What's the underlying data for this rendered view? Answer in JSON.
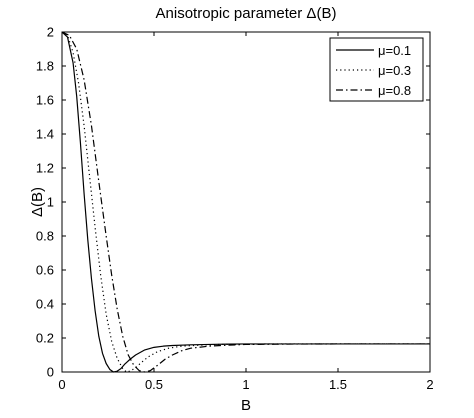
{
  "chart_data": {
    "type": "line",
    "title": "Anisotropic parameter Δ(B)",
    "xlabel": "B",
    "ylabel": "Δ(B)",
    "xlim": [
      0,
      2
    ],
    "ylim": [
      0,
      2
    ],
    "grid": false,
    "legend_position": "top-right",
    "x_ticks": [
      0,
      0.5,
      1,
      1.5,
      2
    ],
    "x_tick_labels": [
      "0",
      "0.5",
      "1",
      "1.5",
      "2"
    ],
    "y_ticks": [
      0,
      0.2,
      0.4,
      0.6,
      0.8,
      1,
      1.2,
      1.4,
      1.6,
      1.8,
      2
    ],
    "y_tick_labels": [
      "0",
      "0.2",
      "0.4",
      "0.6",
      "0.8",
      "1",
      "1.2",
      "1.4",
      "1.6",
      "1.8",
      "2"
    ],
    "series": [
      {
        "name": "μ=0.1",
        "style": "solid",
        "color": "#000000",
        "x": [
          0,
          0.03,
          0.06,
          0.08,
          0.1,
          0.12,
          0.14,
          0.16,
          0.18,
          0.2,
          0.22,
          0.24,
          0.26,
          0.28,
          0.3,
          0.32,
          0.34,
          0.37,
          0.4,
          0.45,
          0.5,
          0.55,
          0.6,
          0.7,
          0.8,
          0.9,
          1.0,
          1.2,
          1.5,
          2.0
        ],
        "y": [
          2.0,
          1.97,
          1.82,
          1.62,
          1.35,
          1.05,
          0.78,
          0.55,
          0.36,
          0.21,
          0.11,
          0.05,
          0.015,
          0.0,
          0.005,
          0.02,
          0.045,
          0.075,
          0.1,
          0.13,
          0.145,
          0.152,
          0.156,
          0.16,
          0.162,
          0.164,
          0.165,
          0.165,
          0.165,
          0.165
        ]
      },
      {
        "name": "μ=0.3",
        "style": "dotted",
        "color": "#000000",
        "x": [
          0,
          0.03,
          0.06,
          0.09,
          0.12,
          0.15,
          0.18,
          0.21,
          0.24,
          0.27,
          0.3,
          0.33,
          0.35,
          0.37,
          0.4,
          0.43,
          0.47,
          0.52,
          0.58,
          0.65,
          0.75,
          0.85,
          1.0,
          1.2,
          1.5,
          2.0
        ],
        "y": [
          2.0,
          1.98,
          1.88,
          1.7,
          1.45,
          1.15,
          0.85,
          0.57,
          0.34,
          0.18,
          0.08,
          0.02,
          0.0,
          0.005,
          0.025,
          0.055,
          0.09,
          0.12,
          0.14,
          0.152,
          0.158,
          0.162,
          0.164,
          0.165,
          0.165,
          0.165
        ]
      },
      {
        "name": "μ=0.8",
        "style": "dashdot",
        "color": "#000000",
        "x": [
          0,
          0.04,
          0.08,
          0.12,
          0.16,
          0.2,
          0.24,
          0.27,
          0.3,
          0.33,
          0.36,
          0.39,
          0.42,
          0.45,
          0.48,
          0.52,
          0.56,
          0.6,
          0.65,
          0.7,
          0.8,
          0.9,
          1.0,
          1.2,
          1.5,
          2.0
        ],
        "y": [
          2.0,
          1.98,
          1.9,
          1.72,
          1.45,
          1.12,
          0.8,
          0.57,
          0.37,
          0.21,
          0.1,
          0.04,
          0.008,
          0.0,
          0.008,
          0.04,
          0.075,
          0.1,
          0.125,
          0.14,
          0.152,
          0.158,
          0.162,
          0.164,
          0.165,
          0.165
        ]
      }
    ]
  }
}
